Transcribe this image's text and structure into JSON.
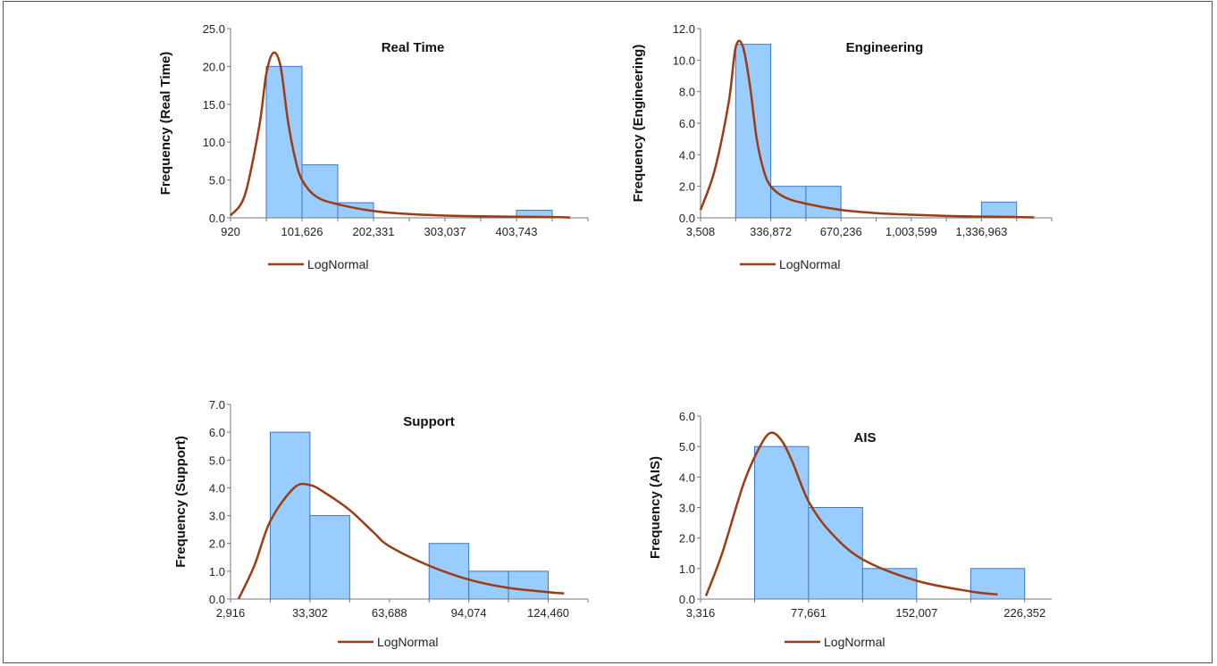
{
  "legend_label": "LogNormal",
  "colors": {
    "bar_fill": "#99CCFF",
    "bar_stroke": "#3C78C8",
    "curve": "#9C3B14",
    "axis": "#777777"
  },
  "chart_data": [
    {
      "type": "bar",
      "title": "Real Time",
      "ylabel": "Frequency (Real Time)",
      "ylim": [
        0,
        25
      ],
      "yticks": [
        "0.0",
        "5.0",
        "10.0",
        "15.0",
        "20.0",
        "25.0"
      ],
      "xticks": [
        "920",
        "101,626",
        "202,331",
        "303,037",
        "403,743"
      ],
      "bin_edges": [
        0.5,
        1,
        1.5,
        2,
        2.5,
        3,
        3.5,
        4,
        4.5
      ],
      "values": [
        20,
        7,
        2,
        0,
        0,
        0,
        0,
        1
      ],
      "curve": {
        "name": "LogNormal",
        "x": [
          0,
          0.2,
          0.4,
          0.5,
          0.6,
          0.7,
          0.8,
          0.9,
          1.0,
          1.2,
          1.5,
          2.0,
          2.5,
          3.0,
          3.5,
          4.0,
          4.5,
          4.75
        ],
        "y": [
          0.3,
          3,
          12,
          19,
          21.8,
          20,
          13,
          8,
          5,
          2.8,
          1.8,
          0.9,
          0.5,
          0.3,
          0.2,
          0.15,
          0.1,
          0.05
        ]
      }
    },
    {
      "type": "bar",
      "title": "Engineering",
      "ylabel": "Frequency (Engineering)",
      "ylim": [
        0,
        12
      ],
      "yticks": [
        "0.0",
        "2.0",
        "4.0",
        "6.0",
        "8.0",
        "10.0",
        "12.0"
      ],
      "xticks": [
        "3,508",
        "336,872",
        "670,236",
        "1,003,599",
        "1,336,963"
      ],
      "bin_edges": [
        0.5,
        1,
        1.5,
        2,
        2.5,
        3,
        3.5,
        4,
        4.5
      ],
      "values": [
        11,
        2,
        2,
        0,
        0,
        0,
        0,
        1
      ],
      "curve": {
        "name": "LogNormal",
        "x": [
          0,
          0.2,
          0.4,
          0.5,
          0.6,
          0.7,
          0.8,
          0.9,
          1.0,
          1.2,
          1.5,
          2.0,
          2.5,
          3.0,
          3.5,
          4.0,
          4.5,
          4.75
        ],
        "y": [
          0.5,
          3,
          7.3,
          10.8,
          10.9,
          8.5,
          5,
          3,
          2,
          1.3,
          0.9,
          0.5,
          0.3,
          0.2,
          0.12,
          0.08,
          0.05,
          0.03
        ]
      }
    },
    {
      "type": "bar",
      "title": "Support",
      "ylabel": "Frequency (Support)",
      "ylim": [
        0,
        7
      ],
      "yticks": [
        "0.0",
        "1.0",
        "2.0",
        "3.0",
        "4.0",
        "5.0",
        "6.0",
        "7.0"
      ],
      "xticks": [
        "2,916",
        "33,302",
        "63,688",
        "94,074",
        "124,460"
      ],
      "bin_edges": [
        0.5,
        1,
        1.5,
        2,
        2.5,
        3,
        3.5,
        4
      ],
      "values": [
        6,
        3,
        0,
        0,
        2,
        1,
        1
      ],
      "curve": {
        "name": "LogNormal",
        "x": [
          0.1,
          0.3,
          0.5,
          0.8,
          1.0,
          1.2,
          1.5,
          1.8,
          2.0,
          2.5,
          3.0,
          3.5,
          4.0,
          4.2
        ],
        "y": [
          0,
          1.2,
          2.8,
          4.0,
          4.1,
          3.8,
          3.2,
          2.4,
          1.9,
          1.2,
          0.7,
          0.4,
          0.25,
          0.2
        ]
      }
    },
    {
      "type": "bar",
      "title": "AIS",
      "ylabel": "Frequency (AIS)",
      "ylim": [
        0,
        6
      ],
      "yticks": [
        "0.0",
        "1.0",
        "2.0",
        "3.0",
        "4.0",
        "5.0",
        "6.0"
      ],
      "xticks": [
        "3,316",
        "77,661",
        "152,007",
        "226,352"
      ],
      "bin_edges": [
        0.5,
        1,
        1.5,
        2,
        2.5,
        3
      ],
      "values": [
        5,
        3,
        1,
        0,
        1
      ],
      "curve": {
        "name": "LogNormal",
        "x": [
          0.05,
          0.2,
          0.4,
          0.55,
          0.65,
          0.75,
          0.85,
          1.0,
          1.2,
          1.5,
          2.0,
          2.5,
          2.75
        ],
        "y": [
          0.1,
          1.5,
          3.8,
          5.0,
          5.45,
          5.2,
          4.5,
          3.2,
          2.2,
          1.3,
          0.6,
          0.25,
          0.15
        ]
      }
    }
  ]
}
